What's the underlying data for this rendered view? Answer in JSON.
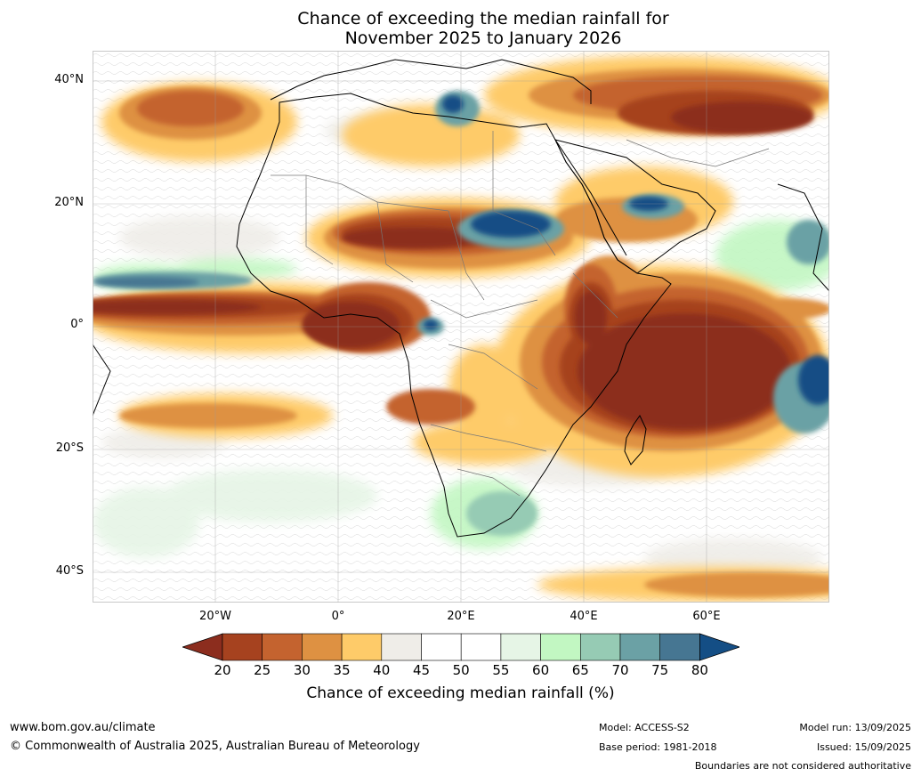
{
  "title": {
    "line1": "Chance of exceeding the median rainfall for",
    "line2": "November 2025 to January 2026"
  },
  "map": {
    "lat_labels": [
      "40°N",
      "20°N",
      "0°",
      "20°S",
      "40°S"
    ],
    "lon_labels": [
      "20°W",
      "0°",
      "20°E",
      "40°E",
      "60°E"
    ],
    "extent": {
      "lon_min": -40,
      "lon_max": 80,
      "lat_min": -45,
      "lat_max": 45
    }
  },
  "colorbar": {
    "ticks": [
      "20",
      "25",
      "30",
      "35",
      "40",
      "45",
      "50",
      "55",
      "60",
      "65",
      "70",
      "75",
      "80"
    ],
    "colors": [
      "#8c2d1e",
      "#a6421f",
      "#c4632f",
      "#de9142",
      "#fecb69",
      "#efede8",
      "#ffffff",
      "#ffffff",
      "#e6f5e6",
      "#c2f7c2",
      "#96cbb4",
      "#6ba1a5",
      "#467692",
      "#144e85"
    ],
    "label": "Chance of exceeding median rainfall (%)"
  },
  "footer": {
    "website": "www.bom.gov.au/climate",
    "copyright": "© Commonwealth of Australia 2025, Australian Bureau of Meteorology",
    "model": "Model: ACCESS-S2",
    "base_period": "Base period: 1981-2018",
    "model_run": "Model run: 13/09/2025",
    "issued": "Issued: 15/09/2025",
    "disclaimer": "Boundaries are not considered authoritative"
  }
}
